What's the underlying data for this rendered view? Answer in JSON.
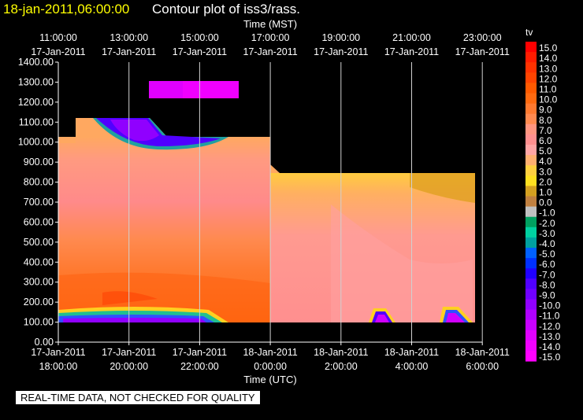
{
  "header": {
    "date_label": "18-jan-2011,06:00:00",
    "title": "Contour plot of iss3/rass."
  },
  "top_axis_title": "Time (MST)",
  "bottom_axis_title": "Time (UTC)",
  "qc_note": "REAL-TIME DATA, NOT CHECKED FOR QUALITY",
  "chart_data": {
    "type": "heatmap",
    "title": "Contour plot of iss3/rass.",
    "variable": "tv",
    "x_top_ticks": [
      {
        "time": "11:00:00",
        "date": "17-Jan-2011"
      },
      {
        "time": "13:00:00",
        "date": "17-Jan-2011"
      },
      {
        "time": "15:00:00",
        "date": "17-Jan-2011"
      },
      {
        "time": "17:00:00",
        "date": "17-Jan-2011"
      },
      {
        "time": "19:00:00",
        "date": "17-Jan-2011"
      },
      {
        "time": "21:00:00",
        "date": "17-Jan-2011"
      },
      {
        "time": "23:00:00",
        "date": "17-Jan-2011"
      }
    ],
    "x_bottom_ticks": [
      {
        "date": "17-Jan-2011",
        "time": "18:00:00"
      },
      {
        "date": "17-Jan-2011",
        "time": "20:00:00"
      },
      {
        "date": "17-Jan-2011",
        "time": "22:00:00"
      },
      {
        "date": "18-Jan-2011",
        "time": "0:00:00"
      },
      {
        "date": "18-Jan-2011",
        "time": "2:00:00"
      },
      {
        "date": "18-Jan-2011",
        "time": "4:00:00"
      },
      {
        "date": "18-Jan-2011",
        "time": "6:00:00"
      }
    ],
    "xlim_utc": [
      "17-Jan-2011 18:00:00",
      "18-Jan-2011 06:00:00"
    ],
    "y_ticks": [
      "0.00",
      "100.00",
      "200.00",
      "300.00",
      "400.00",
      "500.00",
      "600.00",
      "700.00",
      "800.00",
      "900.00",
      "1000.00",
      "1100.00",
      "1200.00",
      "1300.00",
      "1400.00"
    ],
    "ylim": [
      0,
      1400
    ],
    "colorbar": {
      "label": "tv",
      "levels": [
        "15.0",
        "14.0",
        "13.0",
        "12.0",
        "11.0",
        "10.0",
        "9.0",
        "8.0",
        "7.0",
        "6.0",
        "5.0",
        "4.0",
        "3.0",
        "2.0",
        "1.0",
        "0.0",
        "-1.0",
        "-2.0",
        "-3.0",
        "-4.0",
        "-5.0",
        "-6.0",
        "-7.0",
        "-8.0",
        "-9.0",
        "-10.0",
        "-11.0",
        "-12.0",
        "-13.0",
        "-14.0",
        "-15.0"
      ],
      "colors": [
        "#ff0000",
        "#ff1c00",
        "#ff3200",
        "#ff4400",
        "#ff5a00",
        "#ff6a10",
        "#ff7a30",
        "#ff8a50",
        "#ff9580",
        "#ff8f8f",
        "#ffa5a5",
        "#ffb070",
        "#ffd040",
        "#ffe020",
        "#d4a020",
        "#c08040",
        "#c0c0c0",
        "#00a060",
        "#00d0a0",
        "#00a0a0",
        "#0060ff",
        "#0030ff",
        "#2000ff",
        "#5000ff",
        "#7000ff",
        "#9000ff",
        "#b000ff",
        "#c800ff",
        "#e000ff",
        "#f000ff",
        "#ff00ff"
      ]
    },
    "grid": true
  }
}
